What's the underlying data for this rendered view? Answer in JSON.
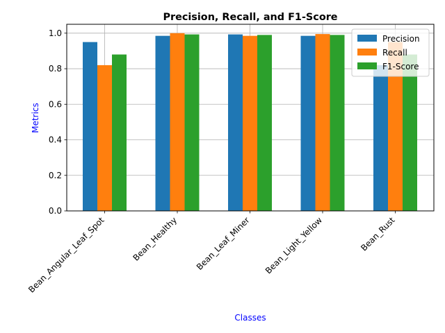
{
  "chart_data": {
    "type": "bar",
    "title": "Precision, Recall, and F1-Score",
    "xlabel": "Classes",
    "ylabel": "Metrics",
    "label_color": "#0000ff",
    "categories": [
      "Bean_Angular_Leaf_Spot",
      "Bean_Healthy",
      "Bean_Leaf_Miner",
      "Bean_Light_Yellow",
      "Bean_Rust"
    ],
    "series": [
      {
        "name": "Precision",
        "color": "#1f77b4",
        "values": [
          0.95,
          0.985,
          0.993,
          0.985,
          0.82
        ]
      },
      {
        "name": "Recall",
        "color": "#ff7f0e",
        "values": [
          0.82,
          1.0,
          0.985,
          0.995,
          0.95
        ]
      },
      {
        "name": "F1-Score",
        "color": "#2ca02c",
        "values": [
          0.88,
          0.993,
          0.99,
          0.99,
          0.88
        ]
      }
    ],
    "ylim": [
      0,
      1.05
    ],
    "yticks": [
      "0.0",
      "0.2",
      "0.4",
      "0.6",
      "0.8",
      "1.0"
    ],
    "grid": true,
    "legend_position": "top-right"
  }
}
